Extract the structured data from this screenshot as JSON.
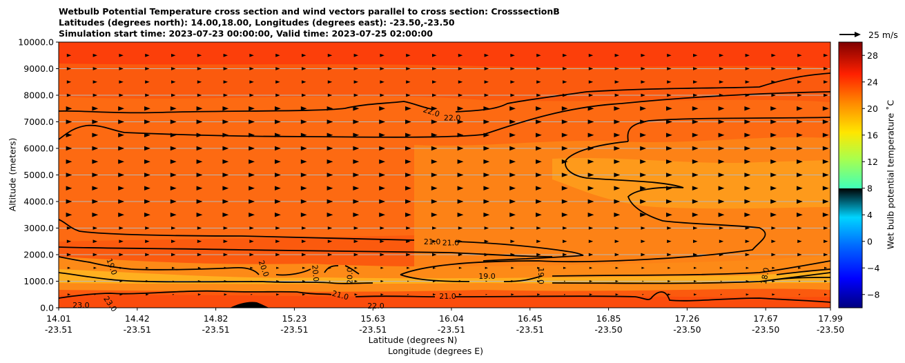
{
  "chart_data": {
    "type": "contour",
    "title_lines": [
      "Wetbulb Potential Temperature cross section and wind vectors parallel to cross section: CrosssectionB",
      "Latitudes (degrees north): 14.00,18.00, Longitudes (degrees east): -23.50,-23.50",
      "Simulation start time: 2023-07-23 00:00:00, Valid time: 2023-07-25 02:00:00"
    ],
    "ylabel": "Altitude (meters)",
    "xlabel_lat": "Latitude (degrees N)",
    "xlabel_lon": "Longitude (degrees E)",
    "colorbar_label": "Wet bulb potential temperature ˚C",
    "reference_vector_label": "25 m/s",
    "ylim": [
      0,
      10000
    ],
    "y_ticks": [
      {
        "value": 0,
        "label": "0.0"
      },
      {
        "value": 1000,
        "label": "1000.0"
      },
      {
        "value": 2000,
        "label": "2000.0"
      },
      {
        "value": 3000,
        "label": "3000.0"
      },
      {
        "value": 4000,
        "label": "4000.0"
      },
      {
        "value": 5000,
        "label": "5000.0"
      },
      {
        "value": 6000,
        "label": "6000.0"
      },
      {
        "value": 7000,
        "label": "7000.0"
      },
      {
        "value": 8000,
        "label": "8000.0"
      },
      {
        "value": 9000,
        "label": "9000.0"
      },
      {
        "value": 10000,
        "label": "10000.0"
      }
    ],
    "x_ticks": [
      {
        "lat": "14.01",
        "lon": "-23.51",
        "frac": 0.0
      },
      {
        "lat": "14.42",
        "lon": "-23.51",
        "frac": 0.1018
      },
      {
        "lat": "14.82",
        "lon": "-23.51",
        "frac": 0.2036
      },
      {
        "lat": "15.23",
        "lon": "-23.51",
        "frac": 0.3054
      },
      {
        "lat": "15.63",
        "lon": "-23.51",
        "frac": 0.4072
      },
      {
        "lat": "16.04",
        "lon": "-23.51",
        "frac": 0.5089
      },
      {
        "lat": "16.45",
        "lon": "-23.51",
        "frac": 0.6107
      },
      {
        "lat": "16.85",
        "lon": "-23.50",
        "frac": 0.7125
      },
      {
        "lat": "17.26",
        "lon": "-23.50",
        "frac": 0.8143
      },
      {
        "lat": "17.67",
        "lon": "-23.50",
        "frac": 0.9161
      },
      {
        "lat": "17.99",
        "lon": "-23.50",
        "frac": 1.0
      }
    ],
    "colorbar_range": [
      -10,
      30
    ],
    "colorbar_ticks": [
      -8,
      -4,
      0,
      4,
      8,
      12,
      16,
      20,
      24,
      28
    ],
    "colorbar_tick_labels": [
      "−8",
      "−4",
      "0",
      "4",
      "8",
      "12",
      "16",
      "20",
      "24",
      "28"
    ],
    "contour_labels": [
      {
        "text": "22.0",
        "frac": 0.483,
        "alt": 7380,
        "rot": 18
      },
      {
        "text": "22.0",
        "frac": 0.51,
        "alt": 7150,
        "rot": 0
      },
      {
        "text": "21.0",
        "frac": 0.484,
        "alt": 2500,
        "rot": 0
      },
      {
        "text": "21.0",
        "frac": 0.508,
        "alt": 2450,
        "rot": 0
      },
      {
        "text": "19.0",
        "frac": 0.069,
        "alt": 1550,
        "rot": 70
      },
      {
        "text": "20.0",
        "frac": 0.266,
        "alt": 1480,
        "rot": 70
      },
      {
        "text": "20.0",
        "frac": 0.333,
        "alt": 1300,
        "rot": 85
      },
      {
        "text": "20.0",
        "frac": 0.377,
        "alt": 1200,
        "rot": -90
      },
      {
        "text": "21.0",
        "frac": 0.365,
        "alt": 480,
        "rot": 15
      },
      {
        "text": "22.0",
        "frac": 0.411,
        "alt": 80,
        "rot": 0
      },
      {
        "text": "23.0",
        "frac": 0.029,
        "alt": 100,
        "rot": 0
      },
      {
        "text": "23.0",
        "frac": 0.067,
        "alt": 150,
        "rot": 55
      },
      {
        "text": "19.0",
        "frac": 0.555,
        "alt": 1200,
        "rot": 0
      },
      {
        "text": "19.0",
        "frac": 0.625,
        "alt": 1200,
        "rot": 90
      },
      {
        "text": "21.0",
        "frac": 0.504,
        "alt": 440,
        "rot": 0
      },
      {
        "text": "18.0",
        "frac": 0.915,
        "alt": 1200,
        "rot": -80
      }
    ]
  }
}
